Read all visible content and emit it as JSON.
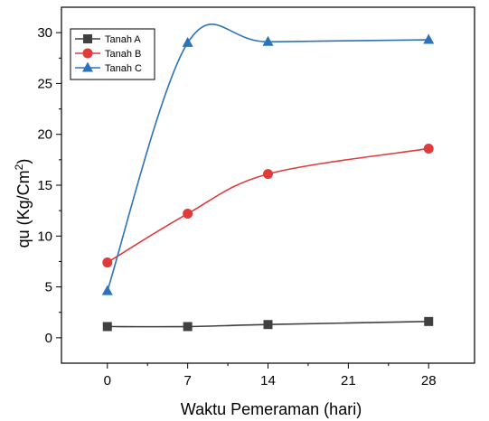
{
  "chart_data": {
    "type": "line",
    "title": "",
    "xlabel": "Waktu Pemeraman (hari)",
    "ylabel_main": "qu (Kg/Cm",
    "ylabel_sup": "2",
    "ylabel_end": ")",
    "x_ticks": [
      0,
      7,
      14,
      21,
      28
    ],
    "y_ticks": [
      0,
      5,
      10,
      15,
      20,
      25,
      30
    ],
    "xlim": [
      -4,
      32
    ],
    "ylim": [
      -2.5,
      32.5
    ],
    "grid": false,
    "legend_position": "top-left",
    "series": [
      {
        "name": "Tanah A",
        "color": "#404040",
        "marker": "square",
        "x": [
          0,
          7,
          14,
          28
        ],
        "y": [
          1.1,
          1.1,
          1.3,
          1.6
        ]
      },
      {
        "name": "Tanah B",
        "color": "#e03a3a",
        "marker": "circle",
        "x": [
          0,
          7,
          14,
          28
        ],
        "y": [
          7.4,
          12.2,
          16.1,
          18.6
        ]
      },
      {
        "name": "Tanah C",
        "color": "#2d73b9",
        "marker": "triangle",
        "x": [
          0,
          7,
          14,
          28
        ],
        "y": [
          4.6,
          29.0,
          29.1,
          29.3
        ]
      }
    ]
  }
}
